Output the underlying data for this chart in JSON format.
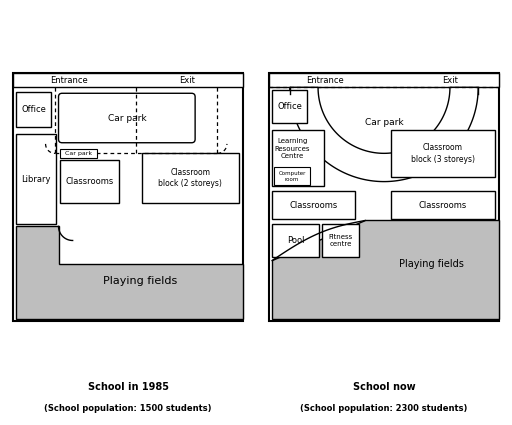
{
  "fig_width": 5.12,
  "fig_height": 4.25,
  "bg_color": "#ffffff",
  "playing_fields_color": "#bebebe",
  "title1": "School in 1985",
  "subtitle1": "(School population: 1500 students)",
  "title2": "School now",
  "subtitle2": "(School population: 2300 students)"
}
